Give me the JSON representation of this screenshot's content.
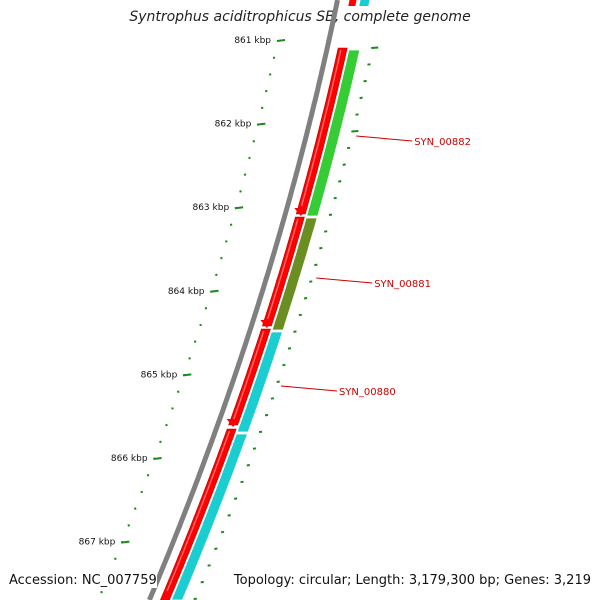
{
  "title": "Syntrophus aciditrophicus SB, complete genome",
  "accession_text": "Accession: NC_007759",
  "summary_text": "Topology: circular; Length: 3,179,300 bp; Genes: 3,219",
  "ticks": [
    {
      "label": "861 kbp"
    },
    {
      "label": "862 kbp"
    },
    {
      "label": "863 kbp"
    },
    {
      "label": "864 kbp"
    },
    {
      "label": "865 kbp"
    },
    {
      "label": "866 kbp"
    },
    {
      "label": "867 kbp"
    }
  ],
  "genes": [
    {
      "label": "SYN_00882",
      "cog_color": "#35cc35"
    },
    {
      "label": "SYN_00881",
      "cog_color": "#6b8e23"
    },
    {
      "label": "SYN_00880",
      "cog_color": "#19cdd0"
    }
  ],
  "colors": {
    "backbone": "#808080",
    "cds": "#ff0000",
    "ticks": "#1a8a1a",
    "gene_label": "#cc0000"
  }
}
